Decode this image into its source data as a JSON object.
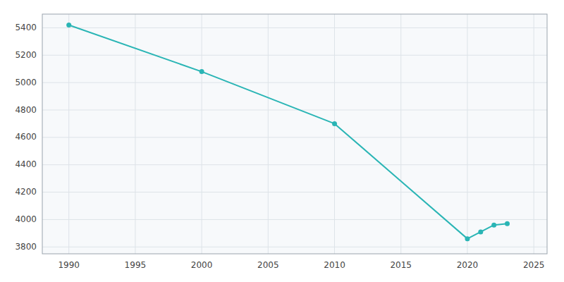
{
  "chart_data": {
    "type": "line",
    "x": [
      1990,
      2000,
      2010,
      2020,
      2021,
      2022,
      2023
    ],
    "values": [
      5420,
      5080,
      4700,
      3860,
      3910,
      3960,
      3970
    ],
    "color": "#2ab5b5",
    "marker": "circle",
    "xlim": [
      1988,
      2026
    ],
    "ylim": [
      3750,
      5500
    ],
    "xticks": [
      1990,
      1995,
      2000,
      2005,
      2010,
      2015,
      2020,
      2025
    ],
    "yticks": [
      3800,
      4000,
      4200,
      4400,
      4600,
      4800,
      5000,
      5200,
      5400
    ],
    "grid": true
  }
}
